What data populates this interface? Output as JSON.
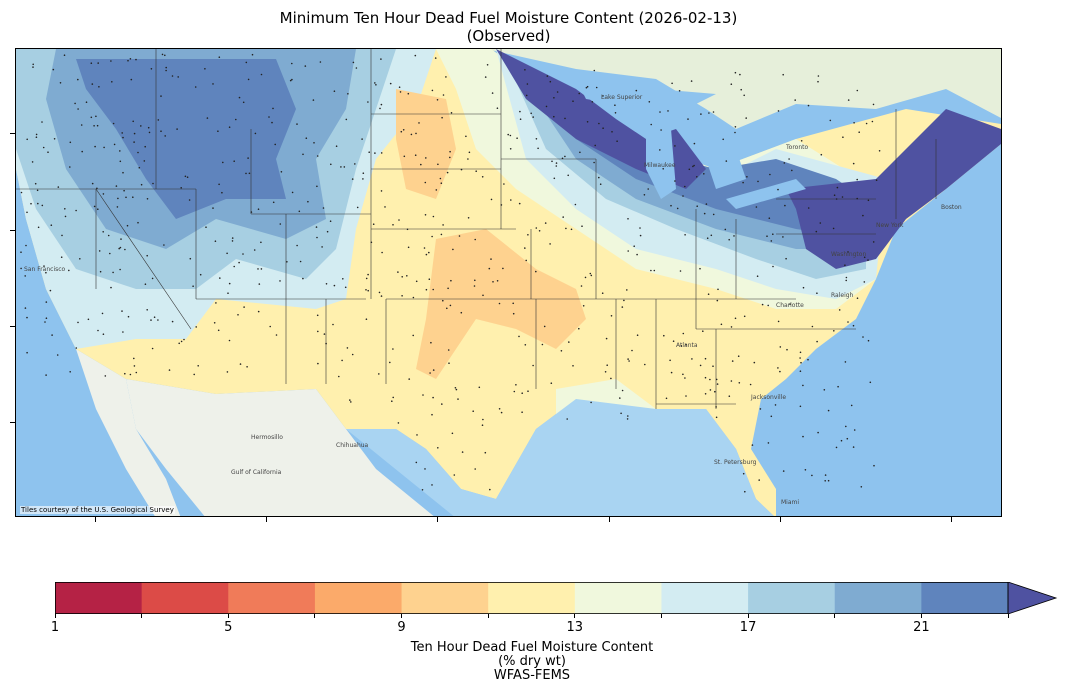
{
  "title": {
    "line1": "Minimum Ten Hour Dead Fuel Moisture Content (2026-02-13)",
    "line2": "(Observed)"
  },
  "map": {
    "credit": "Tiles courtesy of the U.S. Geological Survey",
    "ocean_color": "#8ec3ee",
    "land_color": "#e9efe3",
    "city_labels": [
      "San Francisco",
      "Hermosillo",
      "Chihuahua",
      "Gulf of California",
      "Lake Superior",
      "Milwaukee",
      "Toronto",
      "Boston",
      "New York",
      "Washington",
      "Raleigh",
      "Charlotte",
      "Atlanta",
      "Jacksonville",
      "St. Petersburg",
      "Miami"
    ]
  },
  "colorbar": {
    "tick_labels": [
      "1",
      "5",
      "9",
      "13",
      "17",
      "21"
    ],
    "bins": [
      1,
      3,
      5,
      7,
      9,
      11,
      13,
      15,
      17,
      19,
      21,
      23
    ],
    "extend": "max",
    "colors": [
      "#b52245",
      "#dc4b47",
      "#f07b59",
      "#fbaa6a",
      "#fed28f",
      "#fff0ae",
      "#f0f8dd",
      "#d3ecf2",
      "#a7cfe2",
      "#7fabd1",
      "#5f84bd",
      "#4f52a1"
    ],
    "label_line1": "Ten Hour Dead Fuel Moisture Content",
    "label_line2": "(% dry wt)",
    "label_line3": "WFAS-FEMS"
  }
}
